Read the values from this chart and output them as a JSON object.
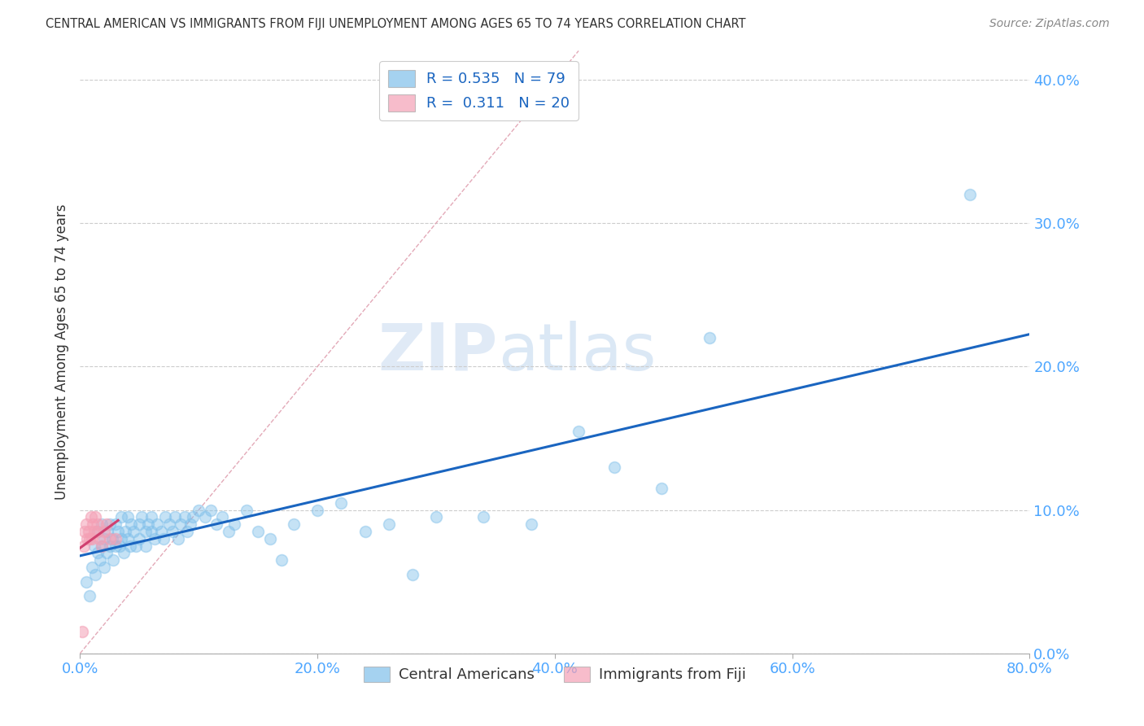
{
  "title": "CENTRAL AMERICAN VS IMMIGRANTS FROM FIJI UNEMPLOYMENT AMONG AGES 65 TO 74 YEARS CORRELATION CHART",
  "source": "Source: ZipAtlas.com",
  "ylabel": "Unemployment Among Ages 65 to 74 years",
  "xlim": [
    0.0,
    0.8
  ],
  "ylim": [
    0.0,
    0.42
  ],
  "xticks": [
    0.0,
    0.2,
    0.4,
    0.6,
    0.8
  ],
  "yticks": [
    0.0,
    0.1,
    0.2,
    0.3,
    0.4
  ],
  "R_blue": 0.535,
  "N_blue": 79,
  "R_pink": 0.311,
  "N_pink": 20,
  "blue_color": "#7fbfea",
  "blue_edge_color": "#7fbfea",
  "pink_color": "#f4a0b5",
  "pink_edge_color": "#f4a0b5",
  "blue_line_color": "#1a65c0",
  "pink_line_color": "#d04070",
  "identity_line_color": "#e0a0b0",
  "legend_label_blue": "Central Americans",
  "legend_label_pink": "Immigrants from Fiji",
  "background_color": "#ffffff",
  "grid_color": "#cccccc",
  "watermark_zip": "ZIP",
  "watermark_atlas": "atlas",
  "tick_color": "#4da6ff",
  "title_color": "#333333",
  "source_color": "#888888",
  "ylabel_color": "#333333",
  "blue_x": [
    0.005,
    0.008,
    0.01,
    0.012,
    0.013,
    0.015,
    0.015,
    0.017,
    0.018,
    0.018,
    0.02,
    0.02,
    0.022,
    0.023,
    0.025,
    0.025,
    0.027,
    0.028,
    0.03,
    0.03,
    0.032,
    0.033,
    0.035,
    0.035,
    0.037,
    0.038,
    0.04,
    0.04,
    0.042,
    0.043,
    0.045,
    0.047,
    0.05,
    0.05,
    0.052,
    0.055,
    0.055,
    0.057,
    0.06,
    0.06,
    0.063,
    0.065,
    0.068,
    0.07,
    0.072,
    0.075,
    0.078,
    0.08,
    0.083,
    0.085,
    0.088,
    0.09,
    0.093,
    0.095,
    0.1,
    0.105,
    0.11,
    0.115,
    0.12,
    0.125,
    0.13,
    0.14,
    0.15,
    0.16,
    0.17,
    0.18,
    0.2,
    0.22,
    0.24,
    0.26,
    0.28,
    0.3,
    0.34,
    0.38,
    0.42,
    0.45,
    0.49,
    0.53,
    0.75
  ],
  "blue_y": [
    0.05,
    0.04,
    0.06,
    0.075,
    0.055,
    0.07,
    0.085,
    0.065,
    0.075,
    0.09,
    0.06,
    0.08,
    0.07,
    0.085,
    0.075,
    0.09,
    0.08,
    0.065,
    0.075,
    0.09,
    0.085,
    0.075,
    0.08,
    0.095,
    0.07,
    0.085,
    0.08,
    0.095,
    0.075,
    0.09,
    0.085,
    0.075,
    0.09,
    0.08,
    0.095,
    0.085,
    0.075,
    0.09,
    0.085,
    0.095,
    0.08,
    0.09,
    0.085,
    0.08,
    0.095,
    0.09,
    0.085,
    0.095,
    0.08,
    0.09,
    0.095,
    0.085,
    0.09,
    0.095,
    0.1,
    0.095,
    0.1,
    0.09,
    0.095,
    0.085,
    0.09,
    0.1,
    0.085,
    0.08,
    0.065,
    0.09,
    0.1,
    0.105,
    0.085,
    0.09,
    0.055,
    0.095,
    0.095,
    0.09,
    0.155,
    0.13,
    0.115,
    0.22,
    0.32
  ],
  "pink_x": [
    0.002,
    0.003,
    0.004,
    0.005,
    0.006,
    0.007,
    0.008,
    0.009,
    0.01,
    0.011,
    0.012,
    0.013,
    0.014,
    0.015,
    0.016,
    0.018,
    0.02,
    0.022,
    0.025,
    0.03
  ],
  "pink_y": [
    0.015,
    0.075,
    0.085,
    0.09,
    0.08,
    0.085,
    0.08,
    0.095,
    0.08,
    0.09,
    0.085,
    0.095,
    0.085,
    0.09,
    0.08,
    0.075,
    0.085,
    0.09,
    0.08,
    0.08
  ]
}
